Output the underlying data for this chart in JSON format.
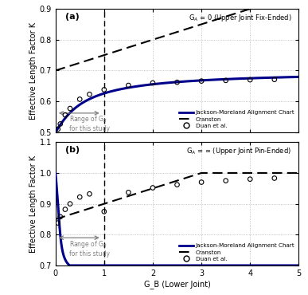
{
  "title_a": "G_A = 0 (Upper Joint Fix-Ended)",
  "title_b": "G_A = ∞ (Upper Joint Pin-Ended)",
  "xlabel": "G_B (Lower Joint)",
  "ylabel": "Effective Length Factor K",
  "label_a": "(a)",
  "label_b": "(b)",
  "xlim": [
    0,
    5.0
  ],
  "ylim_a": [
    0.5,
    0.9
  ],
  "ylim_b": [
    0.7,
    1.1
  ],
  "yticks_a": [
    0.5,
    0.6,
    0.7,
    0.8,
    0.9
  ],
  "yticks_b": [
    0.7,
    0.8,
    0.9,
    1.0,
    1.1
  ],
  "xticks": [
    0.0,
    1.0,
    2.0,
    3.0,
    4.0,
    5.0
  ],
  "vline_x": 1.0,
  "legend_jackson": "Jackson-Moreland Alignment Chart",
  "legend_cranston": "Cranston",
  "legend_duan": "Duan et al.",
  "range_label_a": "Range of G₂\nfor this study",
  "range_label_b": "Range of G₂\nfor this study",
  "duan_a_x": [
    0.05,
    0.1,
    0.2,
    0.3,
    0.5,
    0.7,
    1.0,
    1.5,
    2.0,
    2.5,
    3.0,
    3.5,
    4.0,
    4.5
  ],
  "duan_a_y": [
    0.51,
    0.527,
    0.556,
    0.577,
    0.607,
    0.623,
    0.638,
    0.652,
    0.66,
    0.662,
    0.666,
    0.668,
    0.67,
    0.671
  ],
  "duan_b_x": [
    0.05,
    0.1,
    0.2,
    0.3,
    0.5,
    0.7,
    1.0,
    1.5,
    2.0,
    2.5,
    3.0,
    3.5,
    4.0,
    4.5
  ],
  "duan_b_y": [
    0.838,
    0.858,
    0.882,
    0.9,
    0.922,
    0.932,
    0.875,
    0.937,
    0.952,
    0.962,
    0.97,
    0.975,
    0.98,
    0.983
  ],
  "line_color": "#00008B",
  "cranston_color": "#000000",
  "duan_color": "#000000",
  "background_color": "#ffffff",
  "grid_color": "#aaaaaa"
}
